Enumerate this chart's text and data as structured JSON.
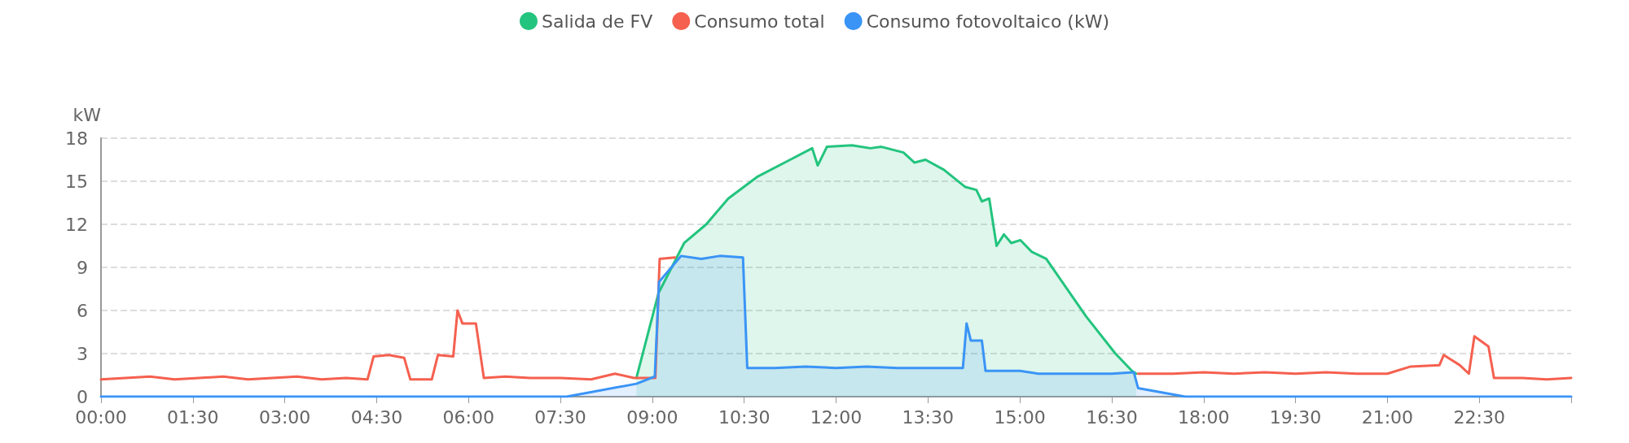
{
  "chart_data": {
    "type": "area",
    "ylabel": "kW",
    "xlim": [
      0,
      24
    ],
    "xticks": [
      {
        "value": 0,
        "label": "00:00"
      },
      {
        "value": 1.5,
        "label": "01:30"
      },
      {
        "value": 3,
        "label": "03:00"
      },
      {
        "value": 4.5,
        "label": "04:30"
      },
      {
        "value": 6,
        "label": "06:00"
      },
      {
        "value": 7.5,
        "label": "07:30"
      },
      {
        "value": 9,
        "label": "09:00"
      },
      {
        "value": 10.5,
        "label": "10:30"
      },
      {
        "value": 12,
        "label": "12:00"
      },
      {
        "value": 13.5,
        "label": "13:30"
      },
      {
        "value": 15,
        "label": "15:00"
      },
      {
        "value": 16.5,
        "label": "16:30"
      },
      {
        "value": 18,
        "label": "18:00"
      },
      {
        "value": 19.5,
        "label": "19:30"
      },
      {
        "value": 21,
        "label": "21:00"
      },
      {
        "value": 22.5,
        "label": "22:30"
      },
      {
        "value": 24,
        "label": null
      }
    ],
    "ylim": [
      0,
      18
    ],
    "yticks": [
      0,
      3,
      6,
      9,
      12,
      15,
      18
    ],
    "grid": "y",
    "legend": "top",
    "marker": "none",
    "line_style": "solid",
    "series": [
      {
        "name": "Salida de FV",
        "color": "#23c47e",
        "x": [
          8.74,
          9.1,
          9.52,
          9.88,
          10.24,
          10.71,
          11.25,
          11.61,
          11.7,
          11.85,
          12.26,
          12.56,
          12.74,
          13.1,
          13.28,
          13.46,
          13.76,
          14.11,
          14.29,
          14.38,
          14.5,
          14.62,
          14.74,
          14.86,
          15.01,
          15.19,
          15.43,
          16.08,
          16.56,
          16.83,
          16.9
        ],
        "values": [
          1.3,
          7.2,
          10.7,
          12,
          13.8,
          15.3,
          16.5,
          17.3,
          16.1,
          17.4,
          17.5,
          17.3,
          17.4,
          17,
          16.3,
          16.5,
          15.8,
          14.6,
          14.4,
          13.6,
          13.8,
          10.5,
          11.3,
          10.7,
          10.9,
          10.1,
          9.6,
          5.6,
          3,
          1.8,
          1.6
        ]
      },
      {
        "name": "Consumo total",
        "type": "line",
        "color": "#f5604f",
        "x": [
          0,
          0.4,
          0.8,
          1.2,
          1.6,
          2,
          2.4,
          2.8,
          3.2,
          3.6,
          4,
          4.35,
          4.45,
          4.7,
          4.95,
          5.05,
          5.4,
          5.5,
          5.75,
          5.82,
          5.9,
          6.12,
          6.25,
          6.6,
          7,
          7.5,
          8,
          8.39,
          8.7,
          9.05,
          9.12,
          9.37,
          9.4,
          16.85,
          16.93,
          17.5,
          18,
          18.5,
          19,
          19.5,
          20,
          20.5,
          21,
          21.38,
          21.85,
          21.92,
          22.18,
          22.33,
          22.42,
          22.65,
          22.74,
          23.2,
          23.6,
          24
        ],
        "values": [
          1.2,
          1.3,
          1.4,
          1.2,
          1.3,
          1.4,
          1.2,
          1.3,
          1.4,
          1.2,
          1.3,
          1.2,
          2.8,
          2.9,
          2.7,
          1.2,
          1.2,
          2.9,
          2.8,
          6,
          5.1,
          5.1,
          1.3,
          1.4,
          1.3,
          1.3,
          1.2,
          1.6,
          1.3,
          1.3,
          9.6,
          9.7,
          null,
          null,
          1.6,
          1.6,
          1.7,
          1.6,
          1.7,
          1.6,
          1.7,
          1.6,
          1.6,
          2.1,
          2.2,
          2.9,
          2.2,
          1.6,
          4.2,
          3.5,
          1.3,
          1.3,
          1.2,
          1.3
        ]
      },
      {
        "name": "Consumo fotovoltaico (kW)",
        "color": "#3a94f6",
        "x": [
          0,
          7.6,
          8.74,
          9.04,
          9.11,
          9.47,
          9.8,
          10.1,
          10.48,
          10.55,
          11,
          11.5,
          12,
          12.5,
          13,
          13.5,
          14.07,
          14.13,
          14.2,
          14.38,
          14.44,
          15,
          15.3,
          16,
          16.5,
          16.86,
          16.93,
          17.7,
          24
        ],
        "values": [
          0,
          0,
          0.9,
          1.4,
          8,
          9.8,
          9.6,
          9.8,
          9.7,
          2,
          2,
          2.1,
          2,
          2.1,
          2,
          2,
          2,
          5.1,
          3.9,
          3.9,
          1.8,
          1.8,
          1.6,
          1.6,
          1.6,
          1.7,
          0.6,
          0,
          0
        ]
      }
    ]
  }
}
